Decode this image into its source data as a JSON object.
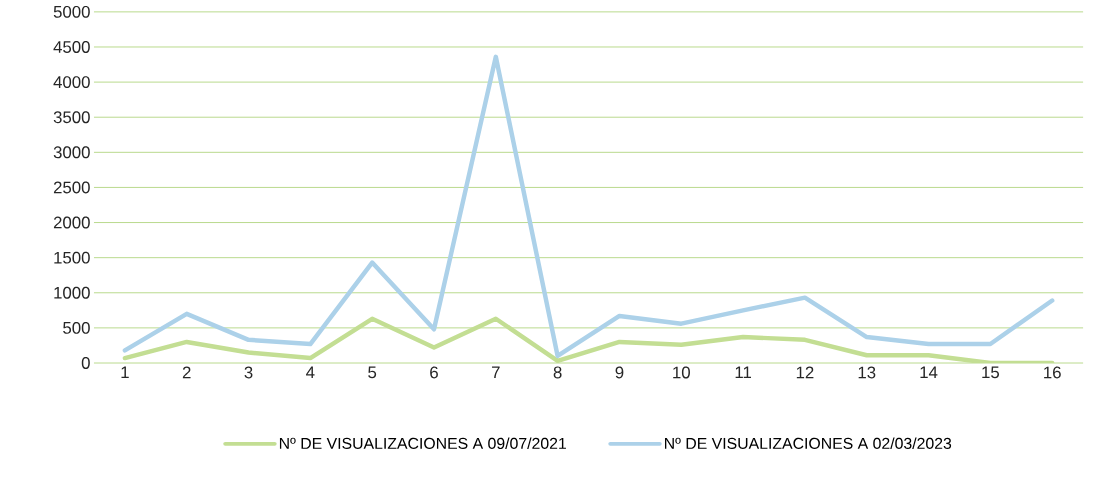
{
  "chart_data": {
    "type": "line",
    "categories": [
      "1",
      "2",
      "3",
      "4",
      "5",
      "6",
      "7",
      "8",
      "9",
      "10",
      "11",
      "12",
      "13",
      "14",
      "15",
      "16"
    ],
    "series": [
      {
        "name": "Nº DE VISUALIZACIONES A 09/07/2021",
        "color": "#c3de93",
        "values": [
          70,
          300,
          150,
          70,
          630,
          220,
          630,
          30,
          300,
          260,
          370,
          330,
          110,
          110,
          0,
          0
        ]
      },
      {
        "name": "Nº DE VISUALIZACIONES A 02/03/2023",
        "color": "#acd1e9",
        "values": [
          180,
          700,
          330,
          270,
          1430,
          480,
          4360,
          100,
          670,
          560,
          750,
          930,
          370,
          270,
          270,
          890
        ]
      }
    ],
    "ylim": [
      0,
      5000
    ],
    "yticks": [
      0,
      500,
      1000,
      1500,
      2000,
      2500,
      3000,
      3500,
      4000,
      4500,
      5000
    ],
    "grid": "y",
    "legend": "bottom",
    "marker": "none",
    "line_style": "solid"
  }
}
